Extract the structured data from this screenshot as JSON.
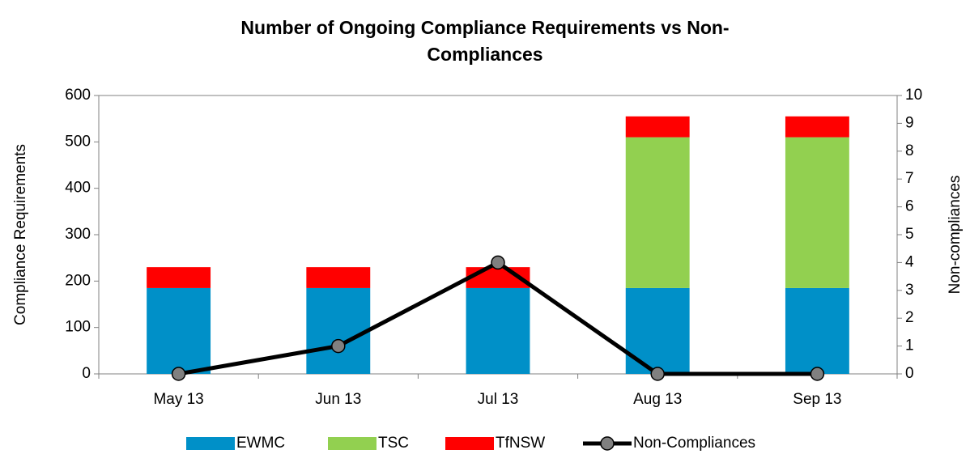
{
  "chart_data": {
    "type": "bar",
    "stacked": true,
    "title": "Number of Ongoing Compliance Requirements vs Non-Compliances",
    "y_label": "Compliance Requirements",
    "y2_label": "Non-compliances",
    "categories": [
      "May 13",
      "Jun 13",
      "Jul 13",
      "Aug 13",
      "Sep 13"
    ],
    "series": [
      {
        "name": "EWMC",
        "color": "#0090c8",
        "values": [
          185,
          185,
          185,
          185,
          185
        ]
      },
      {
        "name": "TSC",
        "color": "#92d050",
        "values": [
          0,
          0,
          0,
          325,
          325
        ]
      },
      {
        "name": "TfNSW",
        "color": "#ff0000",
        "values": [
          45,
          45,
          45,
          45,
          45
        ]
      },
      {
        "name": "Non-Compliances",
        "type": "line",
        "axis": "y2",
        "color": "#000000",
        "marker_color": "#808080",
        "values": [
          0,
          1,
          4,
          0,
          0
        ]
      }
    ],
    "ylim": [
      0,
      600
    ],
    "yticks": [
      0,
      100,
      200,
      300,
      400,
      500,
      600
    ],
    "y2lim": [
      0,
      10
    ],
    "y2ticks": [
      0,
      1,
      2,
      3,
      4,
      5,
      6,
      7,
      8,
      9,
      10
    ],
    "legend": "bottom"
  }
}
